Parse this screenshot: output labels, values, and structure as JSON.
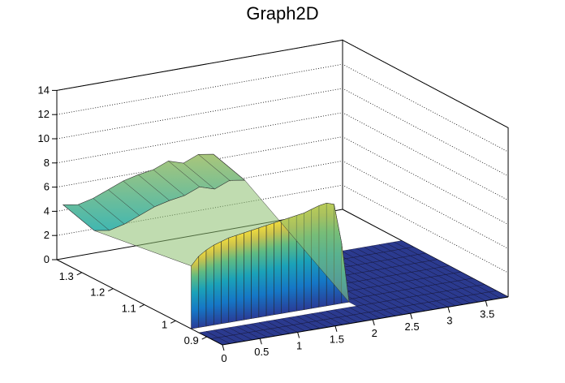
{
  "chart_data": {
    "type": "surface3d",
    "title": "Graph2D",
    "palette": "kBird",
    "x_axis": {
      "range": [
        0,
        3.8
      ],
      "ticks": [
        "0",
        "0.5",
        "1",
        "1.5",
        "2",
        "2.5",
        "3",
        "3.5"
      ]
    },
    "y_axis": {
      "range": [
        0.85,
        1.38
      ],
      "ticks": [
        "0.9",
        "1",
        "1.1",
        "1.2",
        "1.3"
      ]
    },
    "z_axis": {
      "range": [
        0,
        14
      ],
      "ticks": [
        "0",
        "2",
        "4",
        "6",
        "8",
        "10",
        "12",
        "14"
      ]
    },
    "surface_description": {
      "plateau_x_range": [
        0,
        1.95
      ],
      "plateau_height_front": 7.5,
      "plateau_height_back": 5.0,
      "low_y_region_value": 0,
      "tail_x_range": [
        1.95,
        3.8
      ],
      "tail_value": 0
    },
    "front_edge_profile": {
      "x": [
        0.0,
        0.1,
        0.2,
        0.3,
        0.4,
        0.5,
        0.6,
        0.7,
        0.8,
        0.9,
        1.0,
        1.1,
        1.2,
        1.3,
        1.4,
        1.5,
        1.6,
        1.7,
        1.8,
        1.9,
        2.0,
        2.1
      ],
      "z": [
        5.2,
        5.9,
        6.3,
        6.6,
        6.8,
        7.0,
        7.1,
        7.2,
        7.3,
        7.4,
        7.5,
        7.6,
        7.7,
        7.8,
        7.9,
        8.0,
        8.2,
        8.4,
        8.5,
        8.3,
        5.0,
        0.0
      ]
    },
    "back_edge_profile": {
      "x": [
        0.0,
        0.2,
        0.4,
        0.6,
        0.8,
        1.0,
        1.2,
        1.4,
        1.6,
        1.8,
        2.0
      ],
      "z": [
        4.8,
        4.6,
        4.9,
        5.4,
        5.9,
        6.2,
        6.4,
        6.9,
        6.5,
        7.0,
        6.8
      ]
    }
  }
}
